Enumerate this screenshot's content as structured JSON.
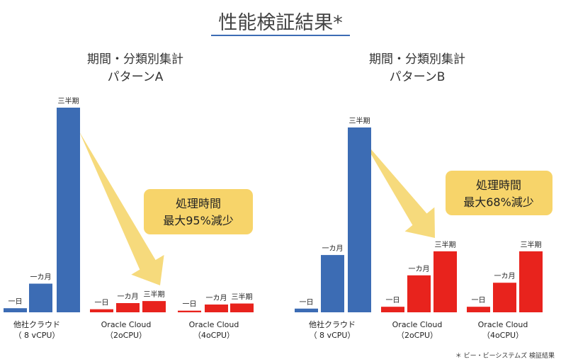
{
  "page_title": "性能検証結果*",
  "footnote": "＊ ビー・ビーシステムズ 検証結果",
  "colors": {
    "blue": "#3c6cb4",
    "red": "#e8231d",
    "callout": "#f7d46a",
    "arrow": "#f5d66e"
  },
  "chart_data": [
    {
      "type": "bar",
      "title_lines": [
        "期間・分類別集計",
        "パターンA"
      ],
      "period_labels": [
        "一日",
        "一カ月",
        "三半期"
      ],
      "groups": [
        {
          "label_lines": [
            "他社クラウド",
            "（ 8 vCPU）"
          ],
          "color": "blue",
          "values": [
            2,
            14,
            100
          ]
        },
        {
          "label_lines": [
            "Oracle Cloud",
            "（2oCPU）"
          ],
          "color": "red",
          "values": [
            1.5,
            4.5,
            5.5
          ]
        },
        {
          "label_lines": [
            "Oracle Cloud",
            "（4oCPU）"
          ],
          "color": "red",
          "values": [
            0.8,
            3.8,
            4.3
          ]
        }
      ],
      "callout_lines": [
        "処理時間",
        "最大95%減少"
      ]
    },
    {
      "type": "bar",
      "title_lines": [
        "期間・分類別集計",
        "パターンB"
      ],
      "period_labels": [
        "一日",
        "一カ月",
        "三半期"
      ],
      "groups": [
        {
          "label_lines": [
            "他社クラウド",
            "（ 8 vCPU）"
          ],
          "color": "blue",
          "values": [
            2,
            31,
            100
          ]
        },
        {
          "label_lines": [
            "Oracle Cloud",
            "（2oCPU）"
          ],
          "color": "red",
          "values": [
            3,
            20,
            33
          ]
        },
        {
          "label_lines": [
            "Oracle Cloud",
            "（4oCPU）"
          ],
          "color": "red",
          "values": [
            3,
            16,
            33
          ]
        }
      ],
      "callout_lines": [
        "処理時間",
        "最大68%減少"
      ]
    }
  ]
}
